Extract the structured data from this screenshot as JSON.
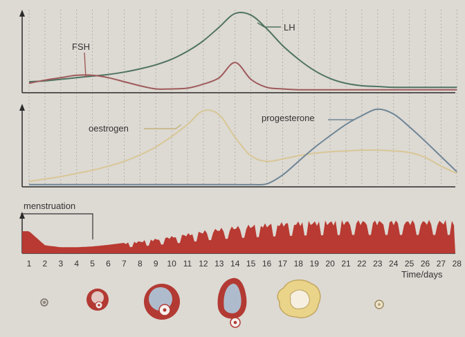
{
  "colors": {
    "background": "#ddd9d3",
    "axis": "#2b2b2b",
    "grid": "#a9a6a1",
    "lh": "#4e7361",
    "fsh": "#9e5a5a",
    "oestrogen": "#d8c796",
    "progesterone": "#6d8596",
    "lining": "#b83a32",
    "follicle_outer": "#b23a33",
    "follicle_inner": "#aebbcc",
    "corpus_luteum": "#ead48a"
  },
  "labels": {
    "lh": "LH",
    "fsh": "FSH",
    "oestrogen": "oestrogen",
    "progesterone": "progesterone",
    "menstruation": "menstruation",
    "xaxis": "Time/days"
  },
  "chart_data": [
    {
      "type": "line",
      "panel": "top",
      "x": [
        1,
        2,
        3,
        4,
        5,
        6,
        7,
        8,
        9,
        10,
        11,
        12,
        13,
        14,
        15,
        16,
        17,
        18,
        19,
        20,
        21,
        22,
        23,
        24,
        25,
        26,
        27,
        28
      ],
      "series": [
        {
          "name": "LH",
          "values": [
            0.12,
            0.13,
            0.15,
            0.17,
            0.19,
            0.21,
            0.24,
            0.28,
            0.33,
            0.4,
            0.5,
            0.63,
            0.8,
            0.97,
            0.95,
            0.78,
            0.57,
            0.4,
            0.26,
            0.16,
            0.1,
            0.07,
            0.06,
            0.05,
            0.05,
            0.05,
            0.05,
            0.05
          ]
        },
        {
          "name": "FSH",
          "values": [
            0.1,
            0.14,
            0.17,
            0.2,
            0.2,
            0.17,
            0.12,
            0.07,
            0.03,
            0.03,
            0.04,
            0.09,
            0.17,
            0.36,
            0.15,
            0.05,
            0.03,
            0.02,
            0.02,
            0.02,
            0.02,
            0.02,
            0.02,
            0.02,
            0.02,
            0.02,
            0.02,
            0.02
          ]
        }
      ]
    },
    {
      "type": "line",
      "panel": "middle",
      "x": [
        1,
        2,
        3,
        4,
        5,
        6,
        7,
        8,
        9,
        10,
        11,
        12,
        13,
        14,
        15,
        16,
        17,
        18,
        19,
        20,
        21,
        22,
        23,
        24,
        25,
        26,
        27,
        28
      ],
      "series": [
        {
          "name": "oestrogen",
          "values": [
            0.05,
            0.08,
            0.11,
            0.15,
            0.19,
            0.24,
            0.3,
            0.38,
            0.48,
            0.61,
            0.76,
            0.93,
            0.88,
            0.6,
            0.37,
            0.3,
            0.33,
            0.37,
            0.4,
            0.42,
            0.43,
            0.44,
            0.44,
            0.43,
            0.41,
            0.35,
            0.24,
            0.15
          ]
        },
        {
          "name": "progesterone",
          "values": [
            0.01,
            0.01,
            0.01,
            0.01,
            0.01,
            0.01,
            0.01,
            0.01,
            0.01,
            0.01,
            0.01,
            0.01,
            0.01,
            0.01,
            0.01,
            0.02,
            0.13,
            0.3,
            0.47,
            0.62,
            0.76,
            0.87,
            0.95,
            0.89,
            0.73,
            0.55,
            0.36,
            0.17
          ]
        }
      ]
    },
    {
      "type": "area",
      "panel": "bottom",
      "name": "uterine lining",
      "categories": [
        "1",
        "2",
        "3",
        "4",
        "5",
        "6",
        "7",
        "8",
        "9",
        "10",
        "11",
        "12",
        "13",
        "14",
        "15",
        "16",
        "17",
        "18",
        "19",
        "20",
        "21",
        "22",
        "23",
        "24",
        "25",
        "26",
        "27",
        "28"
      ],
      "values": [
        0.55,
        0.2,
        0.15,
        0.15,
        0.17,
        0.21,
        0.26,
        0.31,
        0.37,
        0.43,
        0.5,
        0.57,
        0.63,
        0.68,
        0.72,
        0.75,
        0.78,
        0.8,
        0.81,
        0.82,
        0.83,
        0.83,
        0.83,
        0.83,
        0.83,
        0.83,
        0.83,
        0.83
      ],
      "annotation": "menstruation",
      "annotation_days": [
        1,
        5
      ]
    }
  ]
}
